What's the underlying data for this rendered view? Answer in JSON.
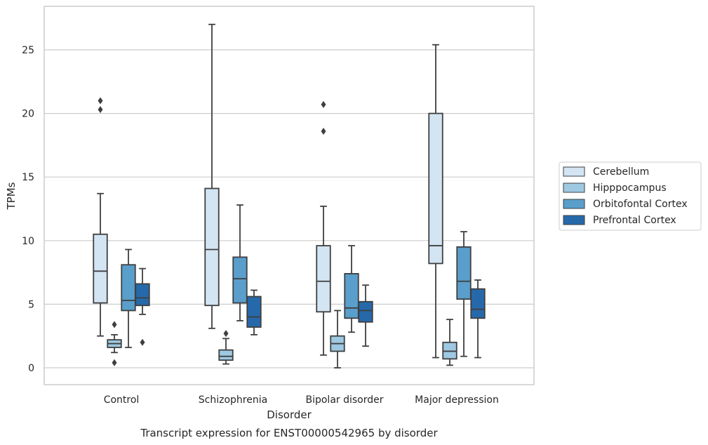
{
  "chart_data": {
    "type": "box",
    "title": "",
    "caption": "Transcript expression for ENST00000542965 by disorder",
    "xlabel": "Disorder",
    "ylabel": "TPMs",
    "ylim": [
      -1.3,
      28.3
    ],
    "yticks": [
      0,
      5,
      10,
      15,
      20,
      25
    ],
    "grid": "horizontal",
    "legend_position": "right",
    "categories": [
      "Control",
      "Schizophrenia",
      "Bipolar disorder",
      "Major depression"
    ],
    "series": [
      {
        "name": "Cerebellum",
        "color": "#d3e4f3",
        "boxes": [
          {
            "whisker_low": 2.5,
            "q1": 5.1,
            "median": 7.6,
            "q3": 10.5,
            "whisker_high": 13.7,
            "outliers": [
              20.3,
              21.0
            ]
          },
          {
            "whisker_low": 3.1,
            "q1": 4.9,
            "median": 9.3,
            "q3": 14.1,
            "whisker_high": 27.0,
            "outliers": []
          },
          {
            "whisker_low": 1.0,
            "q1": 4.4,
            "median": 6.8,
            "q3": 9.6,
            "whisker_high": 12.7,
            "outliers": [
              18.6,
              20.7
            ]
          },
          {
            "whisker_low": 0.8,
            "q1": 8.2,
            "median": 9.6,
            "q3": 20.0,
            "whisker_high": 25.4,
            "outliers": []
          }
        ]
      },
      {
        "name": "Hipppocampus",
        "color": "#9ec9e2",
        "boxes": [
          {
            "whisker_low": 1.2,
            "q1": 1.6,
            "median": 1.9,
            "q3": 2.2,
            "whisker_high": 2.6,
            "outliers": [
              0.4,
              3.4
            ]
          },
          {
            "whisker_low": 0.3,
            "q1": 0.6,
            "median": 0.9,
            "q3": 1.4,
            "whisker_high": 2.3,
            "outliers": [
              2.7
            ]
          },
          {
            "whisker_low": 0.0,
            "q1": 1.3,
            "median": 1.9,
            "q3": 2.5,
            "whisker_high": 4.5,
            "outliers": []
          },
          {
            "whisker_low": 0.2,
            "q1": 0.7,
            "median": 1.3,
            "q3": 2.0,
            "whisker_high": 3.8,
            "outliers": []
          }
        ]
      },
      {
        "name": "Orbitofontal Cortex",
        "color": "#5a9ecb",
        "boxes": [
          {
            "whisker_low": 1.6,
            "q1": 4.5,
            "median": 5.3,
            "q3": 8.1,
            "whisker_high": 9.3,
            "outliers": []
          },
          {
            "whisker_low": 3.7,
            "q1": 5.1,
            "median": 7.0,
            "q3": 8.7,
            "whisker_high": 12.8,
            "outliers": []
          },
          {
            "whisker_low": 2.8,
            "q1": 3.9,
            "median": 4.7,
            "q3": 7.4,
            "whisker_high": 9.6,
            "outliers": []
          },
          {
            "whisker_low": 0.9,
            "q1": 5.4,
            "median": 6.8,
            "q3": 9.5,
            "whisker_high": 10.7,
            "outliers": []
          }
        ]
      },
      {
        "name": "Prefrontal Cortex",
        "color": "#2669ab",
        "boxes": [
          {
            "whisker_low": 4.2,
            "q1": 4.9,
            "median": 5.5,
            "q3": 6.6,
            "whisker_high": 7.8,
            "outliers": [
              2.0
            ]
          },
          {
            "whisker_low": 2.6,
            "q1": 3.2,
            "median": 4.0,
            "q3": 5.6,
            "whisker_high": 6.1,
            "outliers": []
          },
          {
            "whisker_low": 1.7,
            "q1": 3.6,
            "median": 4.5,
            "q3": 5.2,
            "whisker_high": 6.5,
            "outliers": []
          },
          {
            "whisker_low": 0.8,
            "q1": 3.9,
            "median": 4.6,
            "q3": 6.2,
            "whisker_high": 6.9,
            "outliers": []
          }
        ]
      }
    ]
  }
}
